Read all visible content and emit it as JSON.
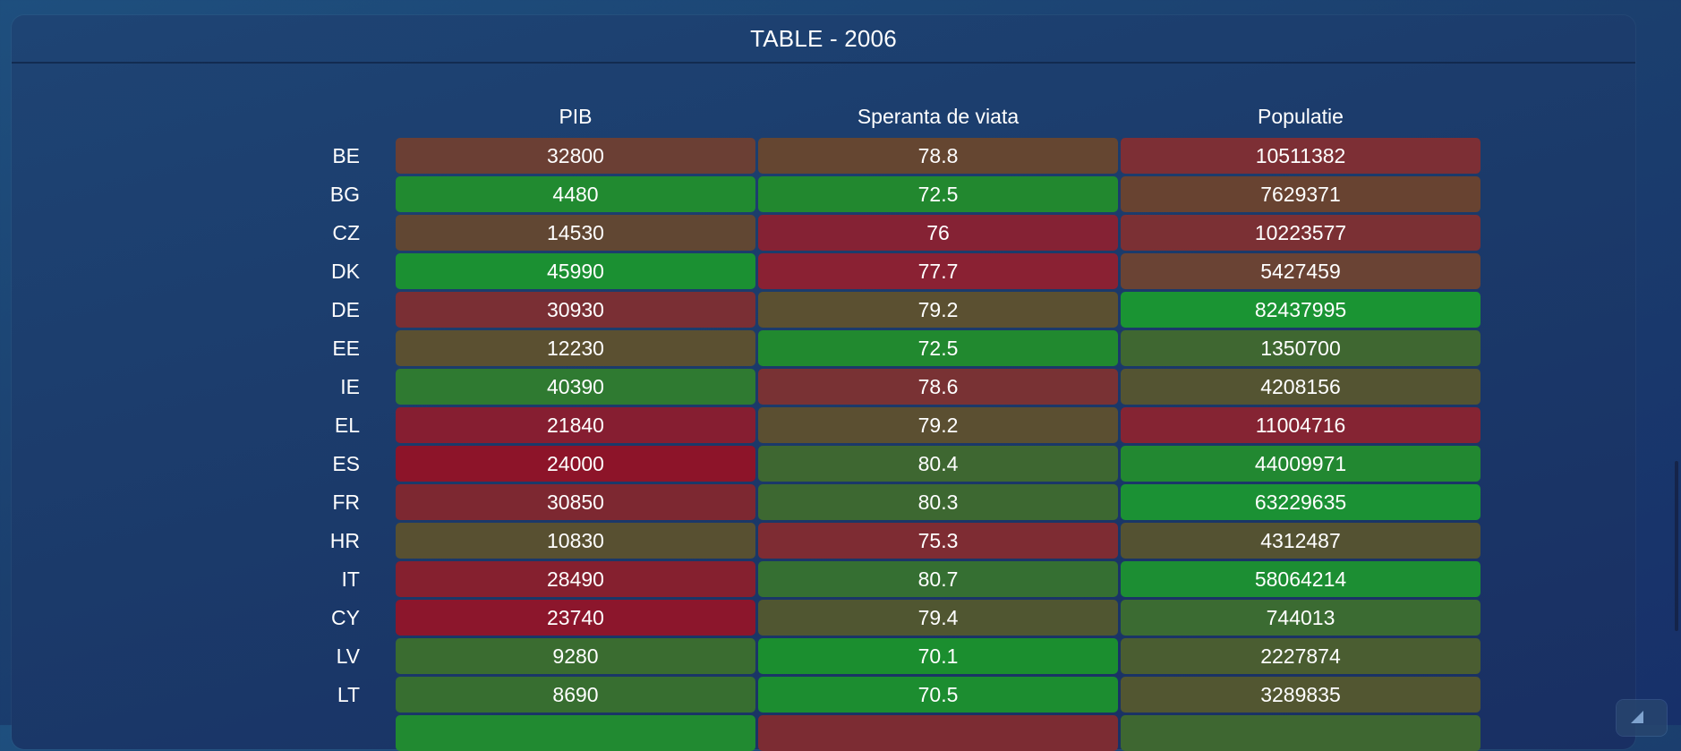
{
  "title": "TABLE - 2006",
  "columns": [
    "PIB",
    "Speranta de viata",
    "Populatie"
  ],
  "rows": [
    {
      "code": "BE",
      "values": [
        "32800",
        "78.8",
        "10511382"
      ],
      "colors": [
        "#6b3f34",
        "#654631",
        "#7d2f35"
      ]
    },
    {
      "code": "BG",
      "values": [
        "4480",
        "72.5",
        "7629371"
      ],
      "colors": [
        "#218a30",
        "#22882f",
        "#684331"
      ]
    },
    {
      "code": "CZ",
      "values": [
        "14530",
        "76",
        "10223577"
      ],
      "colors": [
        "#614733",
        "#852234",
        "#7b3034"
      ]
    },
    {
      "code": "DK",
      "values": [
        "45990",
        "77.7",
        "5427459"
      ],
      "colors": [
        "#1b9032",
        "#8a2133",
        "#6a4334"
      ]
    },
    {
      "code": "DE",
      "values": [
        "30930",
        "79.2",
        "82437995"
      ],
      "colors": [
        "#7a2f34",
        "#5b5031",
        "#1a9433"
      ]
    },
    {
      "code": "EE",
      "values": [
        "12230",
        "72.5",
        "1350700"
      ],
      "colors": [
        "#5b5031",
        "#21892f",
        "#3f6731"
      ]
    },
    {
      "code": "IE",
      "values": [
        "40390",
        "78.6",
        "4208156"
      ],
      "colors": [
        "#2f7a31",
        "#793234",
        "#545432"
      ]
    },
    {
      "code": "EL",
      "values": [
        "21840",
        "79.2",
        "11004716"
      ],
      "colors": [
        "#861e31",
        "#5b4f31",
        "#852433"
      ]
    },
    {
      "code": "ES",
      "values": [
        "24000",
        "80.4",
        "44009971"
      ],
      "colors": [
        "#8d1429",
        "#3e6731",
        "#228831"
      ]
    },
    {
      "code": "FR",
      "values": [
        "30850",
        "80.3",
        "63229635"
      ],
      "colors": [
        "#7d2831",
        "#3d6831",
        "#1b9134"
      ]
    },
    {
      "code": "HR",
      "values": [
        "10830",
        "75.3",
        "4312487"
      ],
      "colors": [
        "#585031",
        "#7e2c33",
        "#545232"
      ]
    },
    {
      "code": "IT",
      "values": [
        "28490",
        "80.7",
        "58064214"
      ],
      "colors": [
        "#85202f",
        "#356f32",
        "#1c8e33"
      ]
    },
    {
      "code": "CY",
      "values": [
        "23740",
        "79.4",
        "744013"
      ],
      "colors": [
        "#8c162c",
        "#505631",
        "#3b6b32"
      ]
    },
    {
      "code": "LV",
      "values": [
        "9280",
        "70.1",
        "2227874"
      ],
      "colors": [
        "#3a6c30",
        "#1b8e2f",
        "#4a5d31"
      ]
    },
    {
      "code": "LT",
      "values": [
        "8690",
        "70.5",
        "3289835"
      ],
      "colors": [
        "#376e30",
        "#1c8d30",
        "#525631"
      ]
    },
    {
      "code": "",
      "values": [
        "",
        "",
        ""
      ],
      "colors": [
        "#218a31",
        "#7c2c33",
        "#3e6731"
      ]
    }
  ]
}
